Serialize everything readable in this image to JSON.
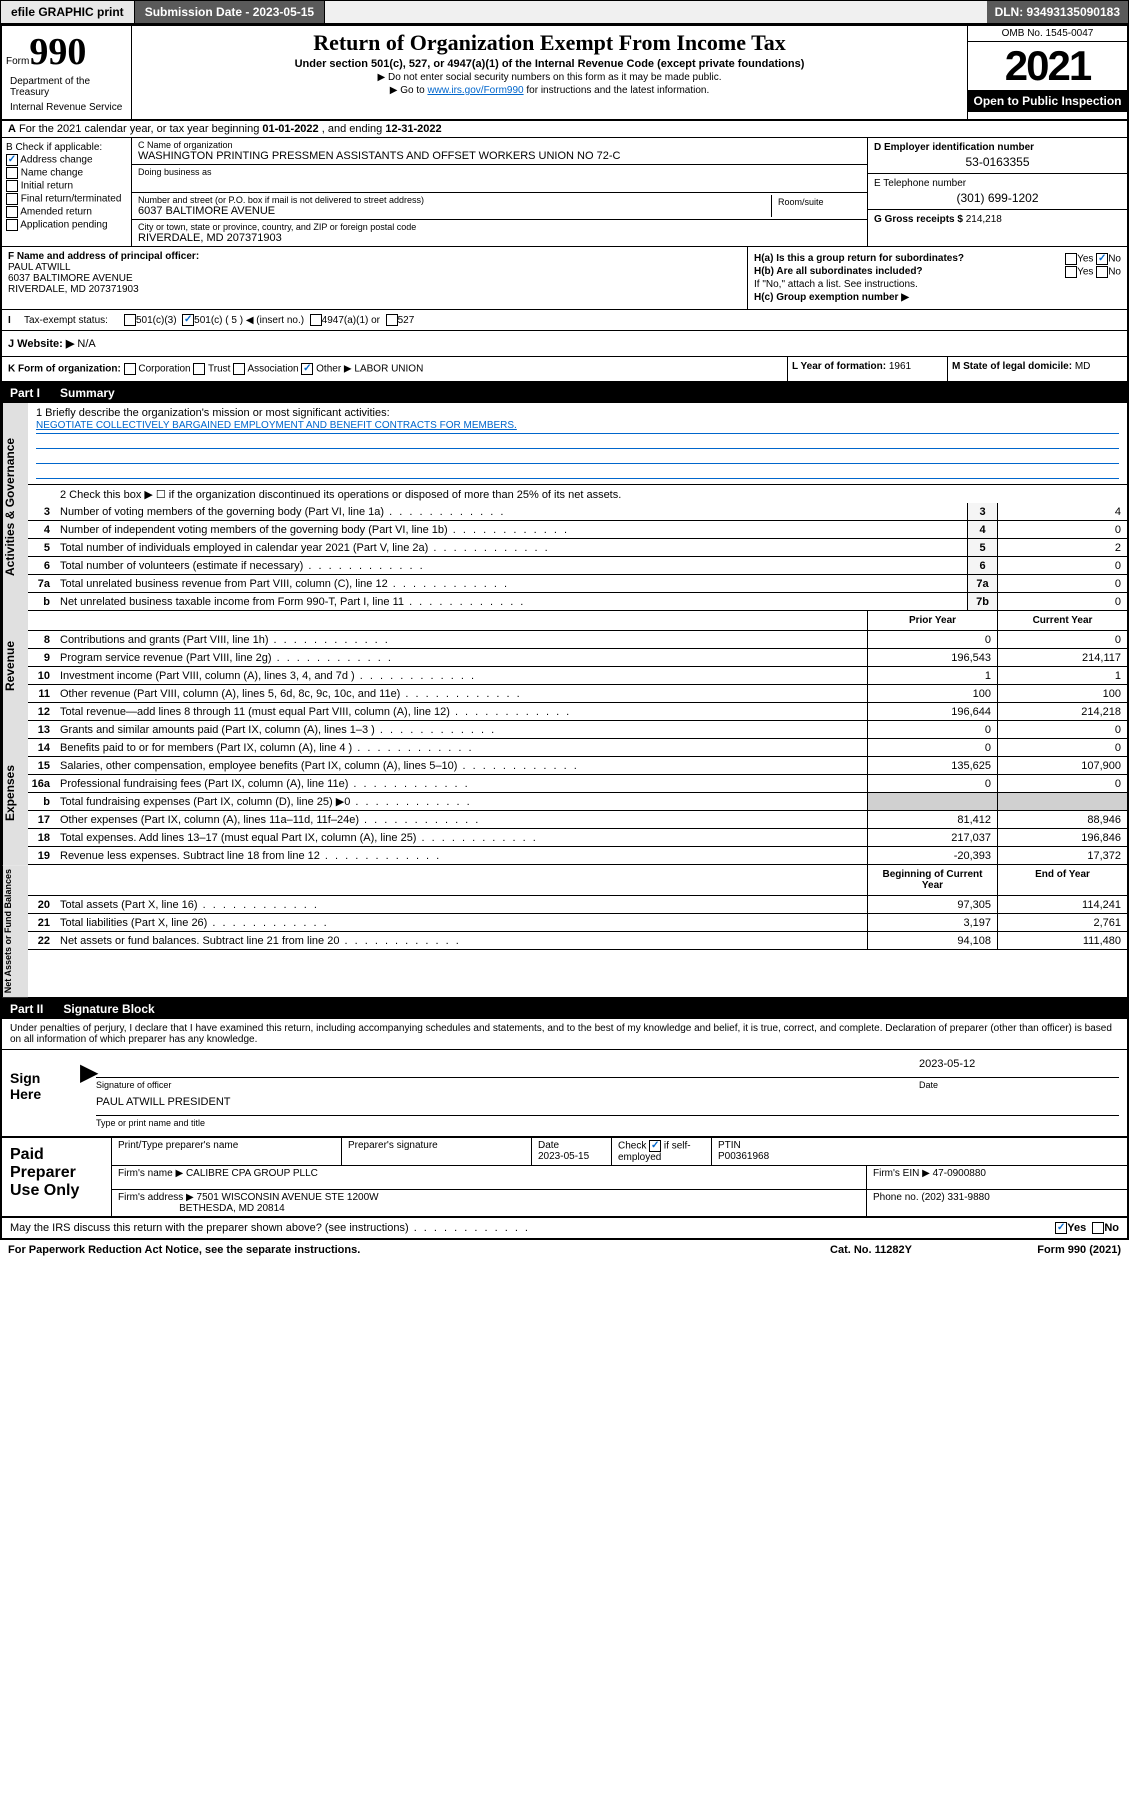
{
  "topbar": {
    "efile": "efile GRAPHIC print",
    "submission_label": "Submission Date - 2023-05-15",
    "dln_label": "DLN: 93493135090183"
  },
  "header": {
    "form_prefix": "Form",
    "form_number": "990",
    "title": "Return of Organization Exempt From Income Tax",
    "subtitle1": "Under section 501(c), 527, or 4947(a)(1) of the Internal Revenue Code (except private foundations)",
    "subtitle2": "▶ Do not enter social security numbers on this form as it may be made public.",
    "subtitle3_pre": "▶ Go to ",
    "subtitle3_link": "www.irs.gov/Form990",
    "subtitle3_post": " for instructions and the latest information.",
    "omb": "OMB No. 1545-0047",
    "year": "2021",
    "open_public": "Open to Public Inspection",
    "dept": "Department of the Treasury",
    "irs": "Internal Revenue Service"
  },
  "row_A": {
    "prefix": "A",
    "text": "For the 2021 calendar year, or tax year beginning ",
    "begin": "01-01-2022",
    "mid": " , and ending ",
    "end": "12-31-2022"
  },
  "col_B": {
    "label": "B Check if applicable:",
    "items": [
      "Address change",
      "Name change",
      "Initial return",
      "Final return/terminated",
      "Amended return",
      "Application pending"
    ],
    "checked_index": 0
  },
  "col_C": {
    "name_label": "C Name of organization",
    "name": "WASHINGTON PRINTING PRESSMEN ASSISTANTS AND OFFSET WORKERS UNION NO 72-C",
    "dba_label": "Doing business as",
    "dba": "",
    "addr_label": "Number and street (or P.O. box if mail is not delivered to street address)",
    "addr": "6037 BALTIMORE AVENUE",
    "room_label": "Room/suite",
    "city_label": "City or town, state or province, country, and ZIP or foreign postal code",
    "city": "RIVERDALE, MD  207371903"
  },
  "col_D": {
    "d_label": "D Employer identification number",
    "d_val": "53-0163355",
    "e_label": "E Telephone number",
    "e_val": "(301) 699-1202",
    "g_label": "G Gross receipts $",
    "g_val": "214,218"
  },
  "col_F": {
    "label": "F Name and address of principal officer:",
    "name": "PAUL ATWILL",
    "addr1": "6037 BALTIMORE AVENUE",
    "addr2": "RIVERDALE, MD  207371903"
  },
  "col_H": {
    "ha": "H(a)  Is this a group return for subordinates?",
    "ha_yes": "Yes",
    "ha_no": "No",
    "hb": "H(b)  Are all subordinates included?",
    "hb_yes": "Yes",
    "hb_no": "No",
    "hb_note": "If \"No,\" attach a list. See instructions.",
    "hc": "H(c)  Group exemption number ▶"
  },
  "row_I": {
    "label": "Tax-exempt status:",
    "opts": [
      "501(c)(3)",
      "501(c) ( 5 ) ◀ (insert no.)",
      "4947(a)(1) or",
      "527"
    ],
    "checked_index": 1
  },
  "row_J": {
    "label": "J   Website: ▶",
    "val": "N/A"
  },
  "row_K": {
    "label": "K Form of organization:",
    "opts": [
      "Corporation",
      "Trust",
      "Association",
      "Other ▶"
    ],
    "checked_index": 3,
    "other_val": "LABOR UNION"
  },
  "row_L": {
    "label": "L Year of formation:",
    "val": "1961"
  },
  "row_M": {
    "label": "M State of legal domicile:",
    "val": "MD"
  },
  "part1": {
    "name": "Part I",
    "title": "Summary",
    "mission_label": "1   Briefly describe the organization's mission or most significant activities:",
    "mission": "NEGOTIATE COLLECTIVELY BARGAINED EMPLOYMENT AND BENEFIT CONTRACTS FOR MEMBERS.",
    "line2": "2   Check this box ▶ ☐  if the organization discontinued its operations or disposed of more than 25% of its net assets."
  },
  "governance": {
    "label": "Activities & Governance",
    "rows": [
      {
        "n": "3",
        "desc": "Number of voting members of the governing body (Part VI, line 1a)",
        "box": "3",
        "val": "4"
      },
      {
        "n": "4",
        "desc": "Number of independent voting members of the governing body (Part VI, line 1b)",
        "box": "4",
        "val": "0"
      },
      {
        "n": "5",
        "desc": "Total number of individuals employed in calendar year 2021 (Part V, line 2a)",
        "box": "5",
        "val": "2"
      },
      {
        "n": "6",
        "desc": "Total number of volunteers (estimate if necessary)",
        "box": "6",
        "val": "0"
      },
      {
        "n": "7a",
        "desc": "Total unrelated business revenue from Part VIII, column (C), line 12",
        "box": "7a",
        "val": "0"
      },
      {
        "n": "b",
        "desc": "Net unrelated business taxable income from Form 990-T, Part I, line 11",
        "box": "7b",
        "val": "0"
      }
    ]
  },
  "col_headers": {
    "prior": "Prior Year",
    "current": "Current Year",
    "begin": "Beginning of Current Year",
    "end": "End of Year"
  },
  "revenue": {
    "label": "Revenue",
    "rows": [
      {
        "n": "8",
        "desc": "Contributions and grants (Part VIII, line 1h)",
        "py": "0",
        "cy": "0"
      },
      {
        "n": "9",
        "desc": "Program service revenue (Part VIII, line 2g)",
        "py": "196,543",
        "cy": "214,117"
      },
      {
        "n": "10",
        "desc": "Investment income (Part VIII, column (A), lines 3, 4, and 7d )",
        "py": "1",
        "cy": "1"
      },
      {
        "n": "11",
        "desc": "Other revenue (Part VIII, column (A), lines 5, 6d, 8c, 9c, 10c, and 11e)",
        "py": "100",
        "cy": "100"
      },
      {
        "n": "12",
        "desc": "Total revenue—add lines 8 through 11 (must equal Part VIII, column (A), line 12)",
        "py": "196,644",
        "cy": "214,218"
      }
    ]
  },
  "expenses": {
    "label": "Expenses",
    "rows": [
      {
        "n": "13",
        "desc": "Grants and similar amounts paid (Part IX, column (A), lines 1–3 )",
        "py": "0",
        "cy": "0"
      },
      {
        "n": "14",
        "desc": "Benefits paid to or for members (Part IX, column (A), line 4 )",
        "py": "0",
        "cy": "0"
      },
      {
        "n": "15",
        "desc": "Salaries, other compensation, employee benefits (Part IX, column (A), lines 5–10)",
        "py": "135,625",
        "cy": "107,900"
      },
      {
        "n": "16a",
        "desc": "Professional fundraising fees (Part IX, column (A), line 11e)",
        "py": "0",
        "cy": "0"
      },
      {
        "n": "b",
        "desc": "Total fundraising expenses (Part IX, column (D), line 25) ▶0",
        "py": "",
        "cy": "",
        "shade": true
      },
      {
        "n": "17",
        "desc": "Other expenses (Part IX, column (A), lines 11a–11d, 11f–24e)",
        "py": "81,412",
        "cy": "88,946"
      },
      {
        "n": "18",
        "desc": "Total expenses. Add lines 13–17 (must equal Part IX, column (A), line 25)",
        "py": "217,037",
        "cy": "196,846"
      },
      {
        "n": "19",
        "desc": "Revenue less expenses. Subtract line 18 from line 12",
        "py": "-20,393",
        "cy": "17,372"
      }
    ]
  },
  "netassets": {
    "label": "Net Assets or Fund Balances",
    "rows": [
      {
        "n": "20",
        "desc": "Total assets (Part X, line 16)",
        "py": "97,305",
        "cy": "114,241"
      },
      {
        "n": "21",
        "desc": "Total liabilities (Part X, line 26)",
        "py": "3,197",
        "cy": "2,761"
      },
      {
        "n": "22",
        "desc": "Net assets or fund balances. Subtract line 21 from line 20",
        "py": "94,108",
        "cy": "111,480"
      }
    ]
  },
  "part2": {
    "name": "Part II",
    "title": "Signature Block",
    "decl": "Under penalties of perjury, I declare that I have examined this return, including accompanying schedules and statements, and to the best of my knowledge and belief, it is true, correct, and complete. Declaration of preparer (other than officer) is based on all information of which preparer has any knowledge."
  },
  "sign": {
    "left": "Sign Here",
    "sig_label": "Signature of officer",
    "date": "2023-05-12",
    "date_label": "Date",
    "name": "PAUL ATWILL PRESIDENT",
    "name_label": "Type or print name and title"
  },
  "paid": {
    "left": "Paid Preparer Use Only",
    "h1": "Print/Type preparer's name",
    "h2": "Preparer's signature",
    "h3": "Date",
    "date": "2023-05-15",
    "h4_pre": "Check",
    "h4_post": "if self-employed",
    "h5": "PTIN",
    "ptin": "P00361968",
    "firm_label": "Firm's name    ▶",
    "firm": "CALIBRE CPA GROUP PLLC",
    "ein_label": "Firm's EIN ▶",
    "ein": "47-0900880",
    "addr_label": "Firm's address ▶",
    "addr1": "7501 WISCONSIN AVENUE STE 1200W",
    "addr2": "BETHESDA, MD  20814",
    "phone_label": "Phone no.",
    "phone": "(202) 331-9880"
  },
  "footer": {
    "discuss": "May the IRS discuss this return with the preparer shown above? (see instructions)",
    "yes": "Yes",
    "no": "No",
    "pra": "For Paperwork Reduction Act Notice, see the separate instructions.",
    "cat": "Cat. No. 11282Y",
    "form": "Form 990 (2021)"
  },
  "colors": {
    "link": "#0066cc",
    "black": "#000000",
    "shade": "#d0d0d0",
    "topbar_dark": "#5a5a5a"
  }
}
